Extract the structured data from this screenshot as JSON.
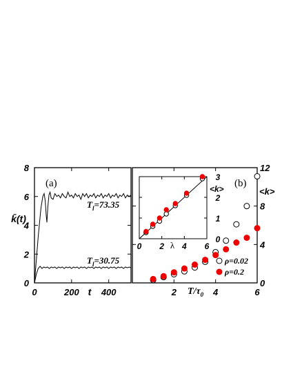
{
  "chart_data": [
    {
      "type": "line",
      "panel_label": "(a)",
      "xlabel": "t",
      "ylabel": "k̄(t)",
      "xlim": [
        0,
        520
      ],
      "ylim": [
        0,
        8
      ],
      "xticks": [
        "0",
        "200",
        "400"
      ],
      "xtick_values": [
        0,
        200,
        400
      ],
      "yticks": [
        "0",
        "2",
        "4",
        "6",
        "8"
      ],
      "ytick_values": [
        0,
        2,
        4,
        6,
        8
      ],
      "series": [
        {
          "name": "T_l=73.35",
          "label_main": "T",
          "label_sub": "l",
          "label_value": "=73.35",
          "points": [
            [
              0,
              0
            ],
            [
              20,
              3.2
            ],
            [
              35,
              5.2
            ],
            [
              45,
              6.0
            ],
            [
              52,
              6.2
            ],
            [
              58,
              5.7
            ],
            [
              63,
              4.7
            ],
            [
              67,
              4.2
            ],
            [
              72,
              5.3
            ],
            [
              78,
              6.1
            ],
            [
              84,
              6.3
            ],
            [
              90,
              5.9
            ],
            [
              100,
              5.8
            ],
            [
              110,
              6.2
            ],
            [
              120,
              6.0
            ],
            [
              130,
              6.1
            ],
            [
              140,
              5.9
            ],
            [
              150,
              6.2
            ],
            [
              160,
              6.0
            ],
            [
              170,
              5.9
            ],
            [
              180,
              6.3
            ],
            [
              190,
              6.0
            ],
            [
              200,
              6.1
            ],
            [
              210,
              5.9
            ],
            [
              220,
              6.2
            ],
            [
              230,
              6.0
            ],
            [
              240,
              6.1
            ],
            [
              250,
              5.8
            ],
            [
              260,
              6.2
            ],
            [
              270,
              6.0
            ],
            [
              280,
              6.2
            ],
            [
              290,
              5.9
            ],
            [
              300,
              6.1
            ],
            [
              310,
              6.0
            ],
            [
              320,
              6.2
            ],
            [
              330,
              5.9
            ],
            [
              340,
              6.1
            ],
            [
              350,
              6.0
            ],
            [
              360,
              6.2
            ],
            [
              370,
              5.9
            ],
            [
              380,
              6.1
            ],
            [
              390,
              6.0
            ],
            [
              400,
              6.2
            ],
            [
              410,
              5.9
            ],
            [
              420,
              6.1
            ],
            [
              430,
              6.0
            ],
            [
              440,
              6.2
            ],
            [
              450,
              5.9
            ],
            [
              460,
              6.1
            ],
            [
              470,
              6.0
            ],
            [
              480,
              6.2
            ],
            [
              490,
              5.9
            ],
            [
              500,
              6.1
            ],
            [
              510,
              6.0
            ],
            [
              520,
              6.1
            ]
          ]
        },
        {
          "name": "T_l=30.75",
          "label_main": "T",
          "label_sub": "l",
          "label_value": "=30.75",
          "points": [
            [
              0,
              0
            ],
            [
              10,
              0.6
            ],
            [
              20,
              1.0
            ],
            [
              30,
              1.15
            ],
            [
              40,
              1.0
            ],
            [
              50,
              1.1
            ],
            [
              60,
              1.05
            ],
            [
              70,
              1.1
            ],
            [
              80,
              1.0
            ],
            [
              90,
              1.1
            ],
            [
              100,
              1.05
            ],
            [
              110,
              1.1
            ],
            [
              120,
              1.0
            ],
            [
              130,
              1.1
            ],
            [
              140,
              1.05
            ],
            [
              150,
              1.1
            ],
            [
              160,
              1.0
            ],
            [
              170,
              1.1
            ],
            [
              180,
              1.05
            ],
            [
              190,
              1.1
            ],
            [
              200,
              1.0
            ],
            [
              210,
              1.1
            ],
            [
              220,
              1.05
            ],
            [
              230,
              1.1
            ],
            [
              240,
              1.0
            ],
            [
              250,
              1.1
            ],
            [
              260,
              1.05
            ],
            [
              270,
              1.1
            ],
            [
              280,
              1.0
            ],
            [
              290,
              1.1
            ],
            [
              300,
              1.05
            ],
            [
              310,
              1.1
            ],
            [
              320,
              1.0
            ],
            [
              330,
              1.1
            ],
            [
              340,
              1.05
            ],
            [
              350,
              1.1
            ],
            [
              360,
              1.0
            ],
            [
              370,
              1.1
            ],
            [
              380,
              1.05
            ],
            [
              390,
              1.1
            ],
            [
              400,
              1.0
            ],
            [
              410,
              1.1
            ],
            [
              420,
              1.05
            ],
            [
              430,
              1.1
            ],
            [
              440,
              1.0
            ],
            [
              450,
              1.1
            ],
            [
              460,
              1.05
            ],
            [
              470,
              1.1
            ],
            [
              480,
              1.0
            ],
            [
              490,
              1.1
            ],
            [
              500,
              1.05
            ],
            [
              510,
              1.1
            ],
            [
              520,
              1.05
            ]
          ]
        }
      ]
    },
    {
      "type": "scatter",
      "panel_label": "(b)",
      "xlabel": "T/τ",
      "xlabel_main": "T/τ",
      "xlabel_sub": "0",
      "ylabel": "<k>",
      "xlim": [
        0,
        6
      ],
      "ylim": [
        0,
        12
      ],
      "xticks": [
        "0",
        "2",
        "4",
        "6"
      ],
      "xtick_values": [
        0,
        2,
        4,
        6
      ],
      "yticks": [
        "0",
        "4",
        "8",
        "12"
      ],
      "ytick_values": [
        0,
        4,
        8,
        12
      ],
      "y_axis_side": "right",
      "legend_position": "bottom-right",
      "series": [
        {
          "name": "ρ=0.02",
          "marker": "open-circle",
          "color": "#000000",
          "x": [
            1.0,
            1.5,
            2.0,
            2.5,
            3.0,
            3.5,
            4.0,
            4.5,
            5.0,
            5.5,
            6.0
          ],
          "y": [
            0.3,
            0.6,
            0.9,
            1.2,
            1.6,
            2.2,
            3.2,
            4.4,
            6.1,
            8.0,
            11.1
          ]
        },
        {
          "name": "ρ=0.2",
          "marker": "filled-circle",
          "color": "#ee0000",
          "x": [
            1.0,
            1.5,
            2.0,
            2.5,
            3.0,
            3.5,
            4.0,
            4.5,
            5.0,
            5.5,
            6.0
          ],
          "y": [
            0.4,
            0.7,
            1.1,
            1.5,
            1.9,
            2.4,
            2.9,
            3.5,
            4.2,
            4.7,
            5.7
          ]
        }
      ],
      "inset": {
        "type": "scatter",
        "xlabel": "λ",
        "ylabel": "<k>",
        "xlim": [
          0,
          6
        ],
        "ylim": [
          0,
          3
        ],
        "xticks": [
          "0",
          "2",
          "4",
          "6"
        ],
        "xtick_values": [
          0,
          2,
          4,
          6
        ],
        "yticks": [
          "0",
          "1",
          "2",
          "3"
        ],
        "ytick_values": [
          0,
          1,
          2,
          3
        ],
        "y_axis_side": "right",
        "line": {
          "x": [
            0,
            6
          ],
          "y": [
            0,
            3
          ]
        },
        "series": [
          {
            "name": "ρ=0.02",
            "marker": "open-circle",
            "color": "#000000",
            "x": [
              0.6,
              1.2,
              1.8,
              2.4,
              3.2,
              4.2,
              5.6
            ],
            "y": [
              0.3,
              0.6,
              0.85,
              1.2,
              1.6,
              2.1,
              2.9
            ]
          },
          {
            "name": "ρ=0.2",
            "marker": "filled-circle",
            "color": "#ee0000",
            "x": [
              0.6,
              1.2,
              1.8,
              2.4,
              3.2,
              4.2,
              5.6
            ],
            "y": [
              0.35,
              0.7,
              1.0,
              1.4,
              1.7,
              2.2,
              3.0
            ]
          }
        ]
      }
    }
  ]
}
